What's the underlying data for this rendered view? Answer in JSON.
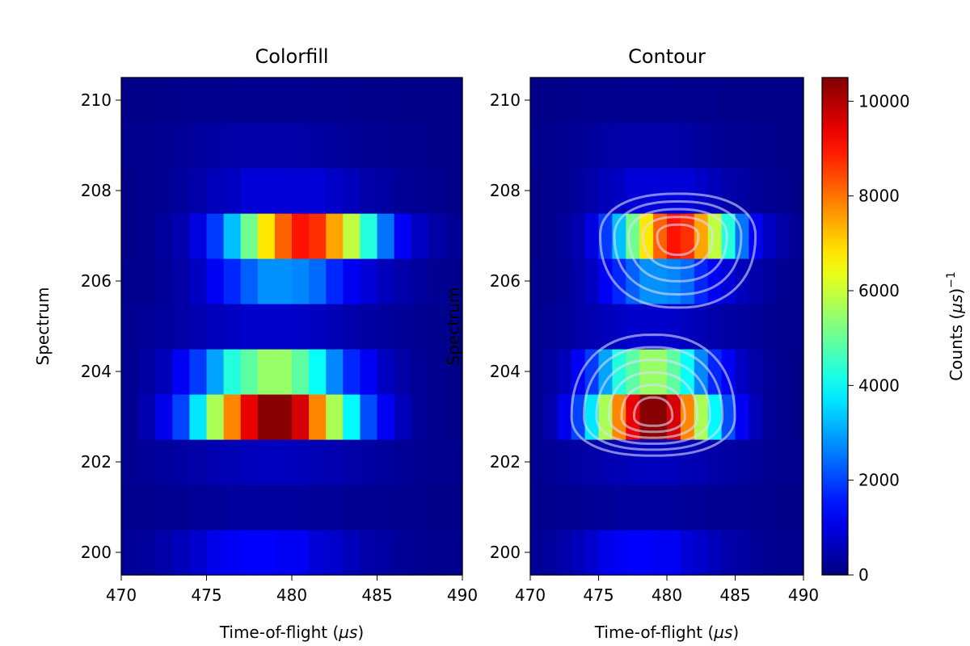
{
  "chart_data": [
    {
      "type": "heatmap",
      "title": "Colorfill",
      "xlabel": "Time-of-flight (µs)",
      "ylabel": "Spectrum",
      "xlim": [
        470,
        490
      ],
      "ylim": [
        199.5,
        210.5
      ],
      "xticks": [
        470,
        475,
        480,
        485,
        490
      ],
      "yticks": [
        200,
        202,
        204,
        206,
        208,
        210
      ],
      "x_bin_edges_start": 470,
      "x_bin_width": 1,
      "spectra": [
        200,
        201,
        202,
        203,
        204,
        205,
        206,
        207,
        208,
        209,
        210
      ],
      "values": [
        [
          250,
          300,
          450,
          600,
          800,
          1100,
          1200,
          1300,
          1300,
          1200,
          1200,
          900,
          800,
          600,
          450,
          350,
          250,
          200,
          150,
          150
        ],
        [
          150,
          150,
          200,
          200,
          250,
          250,
          300,
          300,
          300,
          300,
          300,
          250,
          250,
          200,
          200,
          200,
          150,
          150,
          100,
          100
        ],
        [
          200,
          250,
          300,
          350,
          400,
          500,
          550,
          600,
          650,
          650,
          600,
          550,
          500,
          400,
          350,
          300,
          250,
          200,
          150,
          150
        ],
        [
          200,
          500,
          1100,
          2000,
          3700,
          5700,
          7800,
          9400,
          10400,
          10400,
          9600,
          7800,
          5700,
          3900,
          2100,
          1200,
          600,
          250,
          150,
          100
        ],
        [
          200,
          350,
          600,
          1200,
          1900,
          3000,
          4300,
          4900,
          5500,
          5500,
          4900,
          4000,
          2700,
          1700,
          1200,
          700,
          400,
          250,
          150,
          100
        ],
        [
          200,
          250,
          300,
          400,
          500,
          600,
          700,
          800,
          800,
          800,
          750,
          650,
          550,
          450,
          350,
          300,
          250,
          200,
          150,
          150
        ],
        [
          150,
          150,
          250,
          400,
          700,
          1200,
          1700,
          2300,
          2800,
          2800,
          2700,
          2400,
          1700,
          1200,
          900,
          600,
          450,
          300,
          200,
          150
        ],
        [
          100,
          150,
          300,
          500,
          1000,
          1900,
          3300,
          5100,
          6800,
          8200,
          9000,
          8700,
          7500,
          5900,
          4300,
          2500,
          1200,
          700,
          400,
          250
        ],
        [
          100,
          150,
          200,
          300,
          450,
          600,
          700,
          900,
          900,
          900,
          900,
          900,
          750,
          600,
          450,
          350,
          250,
          200,
          150,
          100
        ],
        [
          150,
          150,
          200,
          250,
          300,
          350,
          400,
          450,
          450,
          450,
          400,
          350,
          300,
          250,
          200,
          200,
          150,
          150,
          100,
          100
        ],
        [
          100,
          100,
          120,
          140,
          150,
          160,
          170,
          180,
          180,
          180,
          170,
          160,
          150,
          140,
          120,
          110,
          100,
          100,
          100,
          100
        ]
      ]
    },
    {
      "type": "heatmap",
      "title": "Contour",
      "xlabel": "Time-of-flight (µs)",
      "ylabel": "Spectrum",
      "xlim": [
        470,
        490
      ],
      "ylim": [
        199.5,
        210.5
      ],
      "xticks": [
        470,
        475,
        480,
        485,
        490
      ],
      "yticks": [
        200,
        202,
        204,
        206,
        208,
        210
      ],
      "overlay": "contour lines (white, semi-transparent)",
      "same_data_as": "Colorfill"
    }
  ],
  "colorbar": {
    "colormap": "jet",
    "range": [
      0,
      10500
    ],
    "ticks": [
      0,
      2000,
      4000,
      6000,
      8000,
      10000
    ],
    "label": "Counts (µs)",
    "label_exponent": "−1"
  }
}
